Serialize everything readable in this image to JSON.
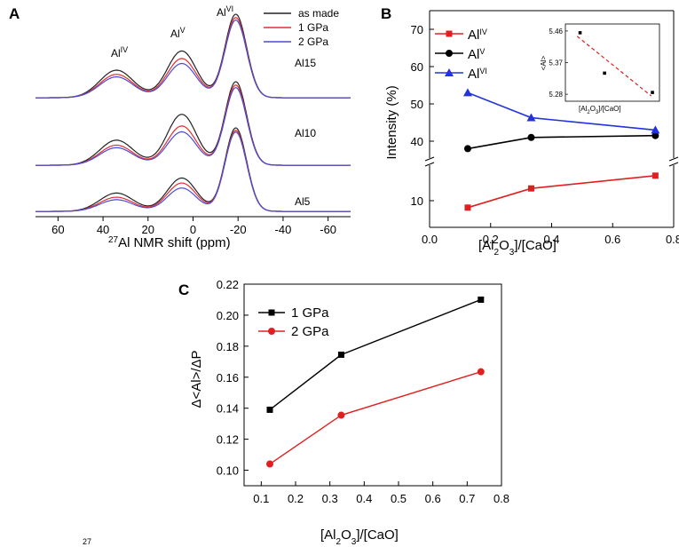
{
  "chart_data": [
    {
      "panel": "A",
      "type": "line",
      "xlabel": "NMR shift (ppm)",
      "xlabel_isotope": "27",
      "xlabel_element": "Al",
      "xlim": [
        70,
        -70
      ],
      "xticks": [
        60,
        40,
        20,
        0,
        -20,
        -40,
        -60
      ],
      "peak_labels": [
        {
          "base": "Al",
          "sup": "IV"
        },
        {
          "base": "Al",
          "sup": "V"
        },
        {
          "base": "Al",
          "sup": "VI"
        }
      ],
      "series": [
        {
          "name": "as made",
          "color": "#222222"
        },
        {
          "name": "1 GPa",
          "color": "#e03030"
        },
        {
          "name": "2 GPa",
          "color": "#4a4ad8"
        }
      ],
      "samples": [
        {
          "name": "Al15",
          "peaks": {
            "as made": [
              0.33,
              0.56,
              1.0
            ],
            "1 GPa": [
              0.28,
              0.47,
              0.96
            ],
            "2 GPa": [
              0.25,
              0.41,
              0.93
            ]
          }
        },
        {
          "name": "Al10",
          "peaks": {
            "as made": [
              0.3,
              0.61,
              1.0
            ],
            "1 GPa": [
              0.24,
              0.47,
              0.96
            ],
            "2 GPa": [
              0.21,
              0.4,
              0.93
            ]
          }
        },
        {
          "name": "Al5",
          "peaks": {
            "as made": [
              0.22,
              0.4,
              1.0
            ],
            "1 GPa": [
              0.17,
              0.34,
              0.97
            ],
            "2 GPa": [
              0.14,
              0.28,
              0.95
            ]
          }
        }
      ]
    },
    {
      "panel": "B",
      "type": "line",
      "xlabel": "[Al2O3]/[CaO]",
      "ylabel": "Intensity (%)",
      "xlim": [
        0.0,
        0.8
      ],
      "xticks": [
        "0.0",
        "0.2",
        "0.4",
        "0.6",
        "0.8"
      ],
      "ylim_upper": [
        35,
        75
      ],
      "yticks_upper": [
        "40",
        "50",
        "60",
        "70"
      ],
      "ylim_lower": [
        5,
        17
      ],
      "yticks_lower": [
        "10"
      ],
      "x": [
        0.125,
        0.333,
        0.74
      ],
      "series": [
        {
          "name": "Al",
          "sup": "IV",
          "color": "#e02020",
          "marker": "square",
          "values": [
            8.7,
            12.3,
            14.7
          ]
        },
        {
          "name": "Al",
          "sup": "V",
          "color": "#000000",
          "marker": "circle",
          "values": [
            38.0,
            41.0,
            41.5
          ]
        },
        {
          "name": "Al",
          "sup": "VI",
          "color": "#2233dd",
          "marker": "triangle",
          "values": [
            53.0,
            46.3,
            43.0
          ]
        }
      ],
      "inset": {
        "xlabel": "[Al2O3]/[CaO]",
        "ylabel": "<Al>",
        "yticks": [
          "5.46",
          "5.37",
          "5.28"
        ],
        "ylim": [
          5.26,
          5.48
        ],
        "xlim": [
          0.0,
          0.8
        ],
        "x": [
          0.125,
          0.333,
          0.74
        ],
        "values": [
          5.455,
          5.34,
          5.285
        ]
      }
    },
    {
      "panel": "C",
      "type": "line",
      "xlabel": "[Al2O3]/[CaO]",
      "ylabel": "Δ<Al>/ΔP",
      "xlim": [
        0.05,
        0.8
      ],
      "xticks": [
        "0.1",
        "0.2",
        "0.3",
        "0.4",
        "0.5",
        "0.6",
        "0.7",
        "0.8"
      ],
      "ylim": [
        0.09,
        0.22
      ],
      "yticks": [
        "0.10",
        "0.12",
        "0.14",
        "0.16",
        "0.18",
        "0.20",
        "0.22"
      ],
      "x": [
        0.125,
        0.333,
        0.74
      ],
      "series": [
        {
          "name": "1 GPa",
          "color": "#000000",
          "marker": "square",
          "values": [
            0.139,
            0.1745,
            0.21
          ]
        },
        {
          "name": "2 GPa",
          "color": "#e02020",
          "marker": "circle",
          "values": [
            0.104,
            0.1355,
            0.1635
          ]
        }
      ]
    }
  ],
  "labels": {
    "panel_a": "A",
    "panel_b": "B",
    "panel_c": "C",
    "caption_sup": "27"
  }
}
